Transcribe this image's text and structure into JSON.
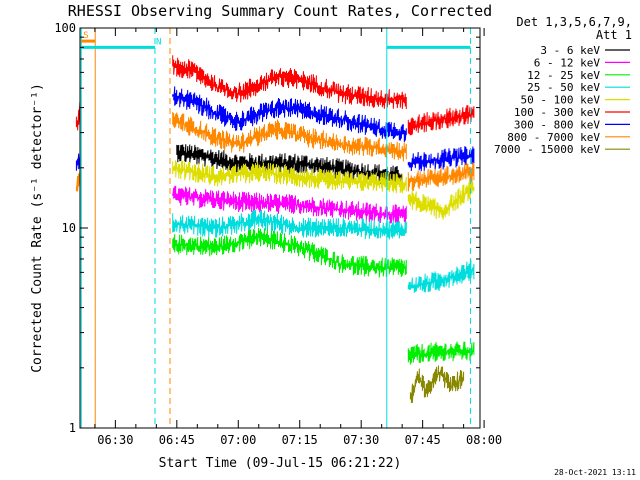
{
  "colors": {
    "axes": "#000000",
    "background": "#ffffff",
    "saa": "#ff8800",
    "night": "#00dddd"
  },
  "chart_data": {
    "type": "line",
    "title": "RHESSI Observing Summary Count Rates, Corrected",
    "xlabel": "Start Time (09-Jul-15 06:21:22)",
    "ylabel": "Corrected Count Rate (s⁻¹ detector⁻¹)",
    "footer": "28-Oct-2021 13:11",
    "x_scale": "time",
    "y_scale": "log",
    "xlim": [
      "06:21:22",
      "07:59:00"
    ],
    "ylim": [
      1,
      100
    ],
    "x_ticks": [
      "06:30",
      "06:45",
      "07:00",
      "07:15",
      "07:30",
      "07:45",
      "08:00"
    ],
    "y_ticks": [
      {
        "value": 1,
        "label": "1"
      },
      {
        "value": 10,
        "label": "10"
      },
      {
        "value": 100,
        "label": "100"
      }
    ],
    "legend": {
      "header": [
        "Det 1,3,5,6,7,9,",
        "Att 1"
      ],
      "position": "right"
    },
    "annotations": [
      {
        "label": "S",
        "start": "06:21:40",
        "end": "06:25:05",
        "y": 86,
        "color": "#ff8800"
      },
      {
        "label": "N",
        "start": "06:21:40",
        "end": "06:39:40",
        "y": 80,
        "color": "#00dddd"
      },
      {
        "label": "",
        "start": "07:36:15",
        "end": "07:56:40",
        "y": 80,
        "color": "#00dddd"
      }
    ],
    "vertical_markers": [
      {
        "time": "06:21:40",
        "color": "#00dddd",
        "dashed": false
      },
      {
        "time": "06:25:05",
        "color": "#ff8800",
        "dashed": false
      },
      {
        "time": "06:39:40",
        "color": "#00dddd",
        "dashed": true
      },
      {
        "time": "06:43:20",
        "color": "#ff8800",
        "dashed": true
      },
      {
        "time": "07:36:15",
        "color": "#00dddd",
        "dashed": false
      },
      {
        "time": "07:56:40",
        "color": "#00dddd",
        "dashed": true
      }
    ],
    "series": [
      {
        "name": "3 - 6 keV",
        "color": "#000000",
        "segments": [
          {
            "times": [
              "06:45:00",
              "07:00:00",
              "07:15:00",
              "07:30:00",
              "07:40:00"
            ],
            "values": [
              24,
              21,
              21,
              19,
              18
            ]
          }
        ]
      },
      {
        "name": "6 - 12 keV",
        "color": "#ff00ff",
        "segments": [
          {
            "times": [
              "06:44:00",
              "07:00:00",
              "07:15:00",
              "07:30:00",
              "07:41:00"
            ],
            "values": [
              14.5,
              13.5,
              13.0,
              12.0,
              11.5
            ]
          }
        ]
      },
      {
        "name": "12 - 25 keV",
        "color": "#00ee00",
        "segments": [
          {
            "times": [
              "06:44:00",
              "06:55:00",
              "07:05:00",
              "07:15:00",
              "07:25:00",
              "07:35:00",
              "07:41:00"
            ],
            "values": [
              8.3,
              8.0,
              9.0,
              8.0,
              6.6,
              6.3,
              6.3
            ]
          },
          {
            "times": [
              "07:41:30",
              "07:50:00",
              "07:57:30"
            ],
            "values": [
              2.3,
              2.4,
              2.4
            ]
          }
        ]
      },
      {
        "name": "25 - 50 keV",
        "color": "#00dddd",
        "segments": [
          {
            "times": [
              "06:44:00",
              "06:55:00",
              "07:05:00",
              "07:15:00",
              "07:25:00",
              "07:35:00",
              "07:41:00"
            ],
            "values": [
              10.5,
              10.0,
              11.0,
              10.0,
              10.0,
              9.8,
              9.8
            ]
          },
          {
            "times": [
              "07:41:30",
              "07:50:00",
              "07:57:30"
            ],
            "values": [
              5.0,
              5.5,
              6.2
            ]
          }
        ]
      },
      {
        "name": "50 - 100 keV",
        "color": "#dddd00",
        "segments": [
          {
            "times": [
              "06:44:00",
              "06:55:00",
              "07:05:00",
              "07:15:00",
              "07:25:00",
              "07:35:00",
              "07:41:00"
            ],
            "values": [
              20,
              18,
              19,
              18,
              17,
              17,
              16.5
            ]
          },
          {
            "times": [
              "07:41:30",
              "07:50:00",
              "07:57:30"
            ],
            "values": [
              14,
              12,
              16
            ]
          }
        ]
      },
      {
        "name": "100 - 300 keV",
        "color": "#ff0000",
        "segments": [
          {
            "times": [
              "06:20:30",
              "06:21:20"
            ],
            "values": [
              32,
              38
            ]
          },
          {
            "times": [
              "06:44:00",
              "06:50:00",
              "06:55:00",
              "07:00:00",
              "07:05:00",
              "07:10:00",
              "07:15:00",
              "07:25:00",
              "07:35:00",
              "07:41:00"
            ],
            "values": [
              65,
              60,
              50,
              47,
              52,
              57,
              55,
              47,
              44,
              44
            ]
          },
          {
            "times": [
              "07:41:30",
              "07:50:00",
              "07:57:30"
            ],
            "values": [
              32,
              35,
              37
            ]
          }
        ]
      },
      {
        "name": "300 - 800 keV",
        "color": "#0000ff",
        "segments": [
          {
            "times": [
              "06:20:30",
              "06:21:20"
            ],
            "values": [
              20,
              22
            ]
          },
          {
            "times": [
              "06:44:00",
              "06:50:00",
              "06:55:00",
              "07:00:00",
              "07:05:00",
              "07:10:00",
              "07:15:00",
              "07:25:00",
              "07:35:00",
              "07:41:00"
            ],
            "values": [
              46,
              42,
              37,
              34,
              37,
              40,
              39,
              35,
              31,
              30
            ]
          },
          {
            "times": [
              "07:41:30",
              "07:50:00",
              "07:57:30"
            ],
            "values": [
              21,
              22,
              23
            ]
          }
        ]
      },
      {
        "name": "800 - 7000 keV",
        "color": "#ff8800",
        "segments": [
          {
            "times": [
              "06:20:30",
              "06:21:20"
            ],
            "values": [
              16,
              18
            ]
          },
          {
            "times": [
              "06:44:00",
              "06:50:00",
              "06:55:00",
              "07:00:00",
              "07:05:00",
              "07:10:00",
              "07:15:00",
              "07:25:00",
              "07:35:00",
              "07:41:00"
            ],
            "values": [
              35,
              31,
              28,
              26,
              29,
              31,
              29,
              26,
              25,
              24
            ]
          },
          {
            "times": [
              "07:41:30",
              "07:50:00",
              "07:57:30"
            ],
            "values": [
              17,
              18,
              19
            ]
          }
        ]
      },
      {
        "name": "7000 - 15000 keV",
        "color": "#888800",
        "segments": [
          {
            "times": [
              "07:42:00",
              "07:44:00",
              "07:46:00",
              "07:49:00",
              "07:52:00",
              "07:55:00"
            ],
            "values": [
              1.4,
              1.8,
              1.5,
              1.9,
              1.6,
              1.8
            ]
          }
        ]
      }
    ]
  }
}
